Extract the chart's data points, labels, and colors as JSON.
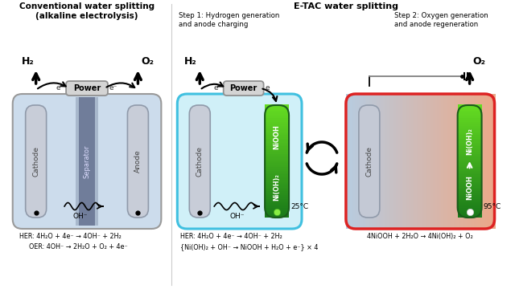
{
  "title_left": "Conventional water splitting\n(alkaline electrolysis)",
  "title_right": "E-TAC water splitting",
  "step1_label": "Step 1: Hydrogen generation\nand anode charging",
  "step2_label": "Step 2: Oxygen generation\nand anode regeneration",
  "eq_left_1": "HER: 4H₂O + 4e⁻ → 4OH⁻ + 2H₂",
  "eq_left_2": "OER: 4OH⁻ → 2H₂O + O₂ + 4e⁻",
  "eq_mid_1": "HER: 4H₂O + 4e⁻ → 4OH⁻ + 2H₂",
  "eq_mid_2": "{Ni(OH)₂ + OH⁻ → NiOOH + H₂O + e⁻} × 4",
  "eq_right": "4NiOOH + 2H₂O → 4Ni(OH)₂ + O₂",
  "bg_color": "#ffffff",
  "cell1_fill": "#ccdcec",
  "cell1_border": "#999999",
  "sep_dark": "#7080a0",
  "sep_light": "#9aabcb",
  "cathode_fill": "#c8cdd8",
  "cathode_edge": "#999aaa",
  "cell2_fill": "#d0f0f8",
  "cell2_border": "#40c0e0",
  "nioooh_top": "#1a7a1a",
  "nioooh_bot": "#88dd44",
  "cell3_border": "#dd2222",
  "power_fill": "#d8d8d8",
  "power_edge": "#999999",
  "temp25": "25°C",
  "temp95": "95°C"
}
